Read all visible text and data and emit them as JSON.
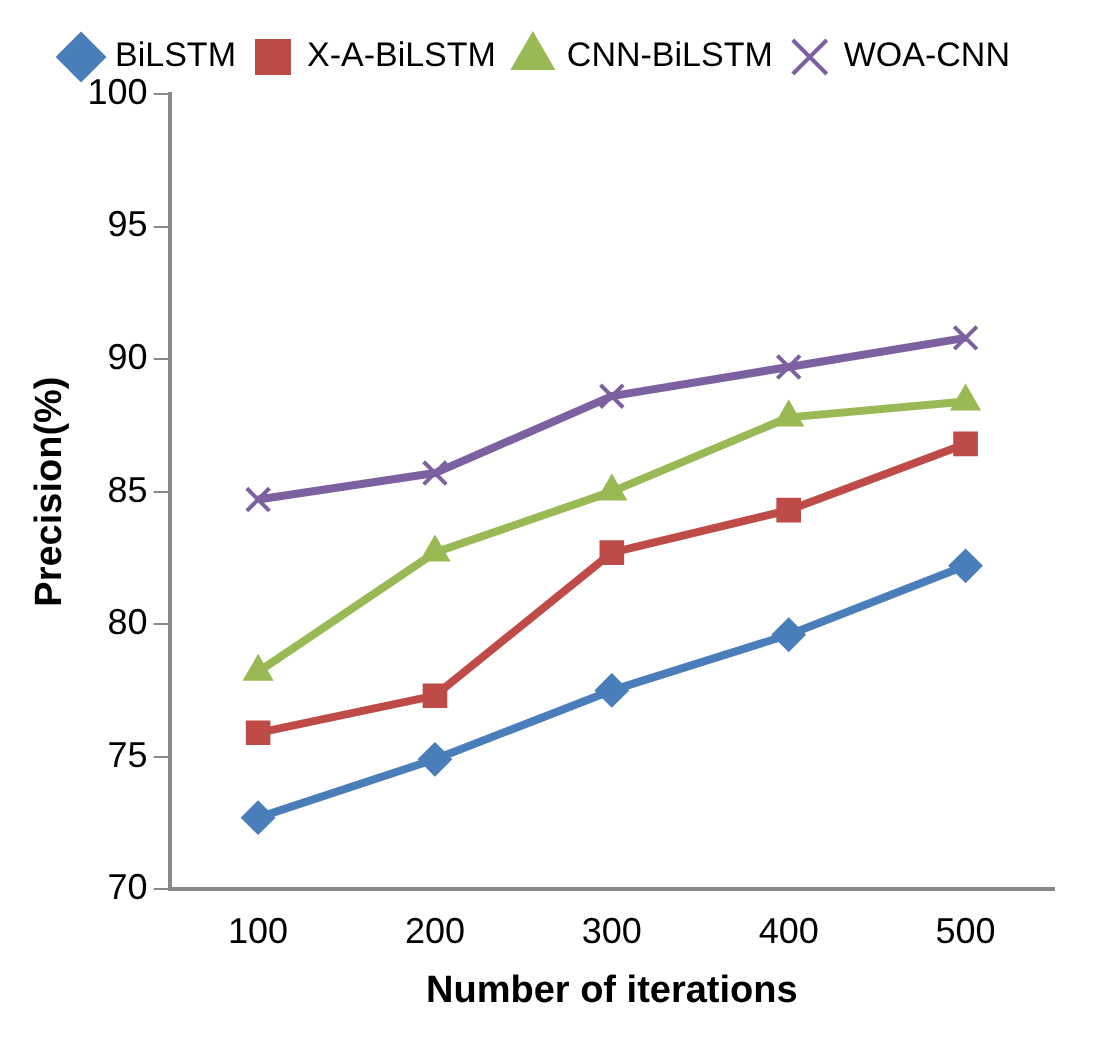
{
  "chart_data": {
    "type": "line",
    "xlabel": "Number of iterations",
    "ylabel": "Precision(%)",
    "categories": [
      "100",
      "200",
      "300",
      "400",
      "500"
    ],
    "ylim": [
      70,
      100
    ],
    "yticks": [
      70,
      75,
      80,
      85,
      90,
      95,
      100
    ],
    "grid": false,
    "legend": "top",
    "series": [
      {
        "name": "BiLSTM",
        "color": "#4a7ebb",
        "marker": "diamond",
        "values": [
          72.7,
          74.9,
          77.5,
          79.6,
          82.2
        ]
      },
      {
        "name": "X-A-BiLSTM",
        "color": "#be4b48",
        "marker": "square",
        "values": [
          75.9,
          77.3,
          82.7,
          84.3,
          86.8
        ]
      },
      {
        "name": "CNN-BiLSTM",
        "color": "#98b954",
        "marker": "triangle",
        "values": [
          78.2,
          82.7,
          85.0,
          87.8,
          88.4
        ]
      },
      {
        "name": "WOA-CNN",
        "color": "#7d60a0",
        "marker": "cross",
        "values": [
          84.7,
          85.7,
          88.6,
          89.7,
          90.8
        ]
      }
    ]
  }
}
